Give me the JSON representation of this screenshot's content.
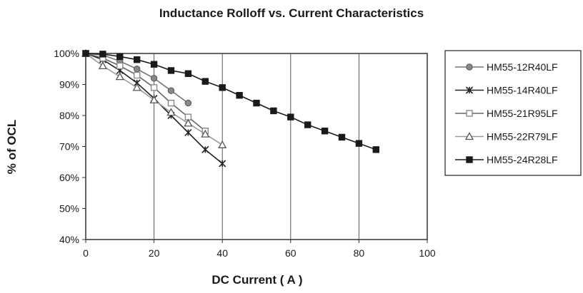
{
  "chart_data": {
    "type": "line",
    "title": "Inductance Rolloff vs. Current Characteristics",
    "xlabel": "DC Current ( A )",
    "ylabel": "% of OCL",
    "xlim": [
      0,
      100
    ],
    "ylim": [
      40,
      100
    ],
    "x_ticks": [
      "0",
      "20",
      "40",
      "60",
      "80",
      "100"
    ],
    "y_ticks": [
      "40%",
      "50%",
      "60%",
      "70%",
      "80%",
      "90%",
      "100%"
    ],
    "grid": "vertical",
    "legend_position": "right",
    "series": [
      {
        "name": "HM55-12R40LF",
        "marker": "circle",
        "color": "#888888",
        "line_color": "#777777",
        "x": [
          0,
          5,
          10,
          15,
          20,
          25,
          30
        ],
        "y": [
          100,
          99.5,
          97.5,
          95,
          92,
          88,
          84
        ]
      },
      {
        "name": "HM55-14R40LF",
        "marker": "star",
        "color": "#222222",
        "line_color": "#222222",
        "x": [
          0,
          5,
          10,
          15,
          20,
          25,
          30,
          35,
          40
        ],
        "y": [
          100,
          98,
          94.5,
          90.5,
          85.5,
          80,
          74.5,
          69,
          64.5
        ]
      },
      {
        "name": "HM55-21R95LF",
        "marker": "square-open",
        "color": "#888888",
        "line_color": "#666666",
        "x": [
          0,
          5,
          10,
          15,
          20,
          25,
          30,
          35
        ],
        "y": [
          100,
          98.5,
          96,
          93,
          89,
          84,
          79.5,
          75
        ]
      },
      {
        "name": "HM55-22R79LF",
        "marker": "triangle-open",
        "color": "#888888",
        "line_color": "#999999",
        "x": [
          0,
          5,
          10,
          15,
          20,
          25,
          30,
          35,
          40
        ],
        "y": [
          100,
          96,
          92.5,
          89,
          85,
          81,
          77.5,
          74,
          70.5
        ]
      },
      {
        "name": "HM55-24R28LF",
        "marker": "square-filled",
        "color": "#1a1a1a",
        "line_color": "#1a1a1a",
        "x": [
          0,
          5,
          10,
          15,
          20,
          25,
          30,
          35,
          40,
          45,
          50,
          55,
          60,
          65,
          70,
          75,
          80,
          85
        ],
        "y": [
          100,
          99.8,
          99,
          98,
          96.5,
          94.5,
          93.5,
          91,
          89,
          86.5,
          84,
          81.5,
          79.5,
          77,
          75,
          73,
          71,
          69
        ]
      }
    ]
  }
}
